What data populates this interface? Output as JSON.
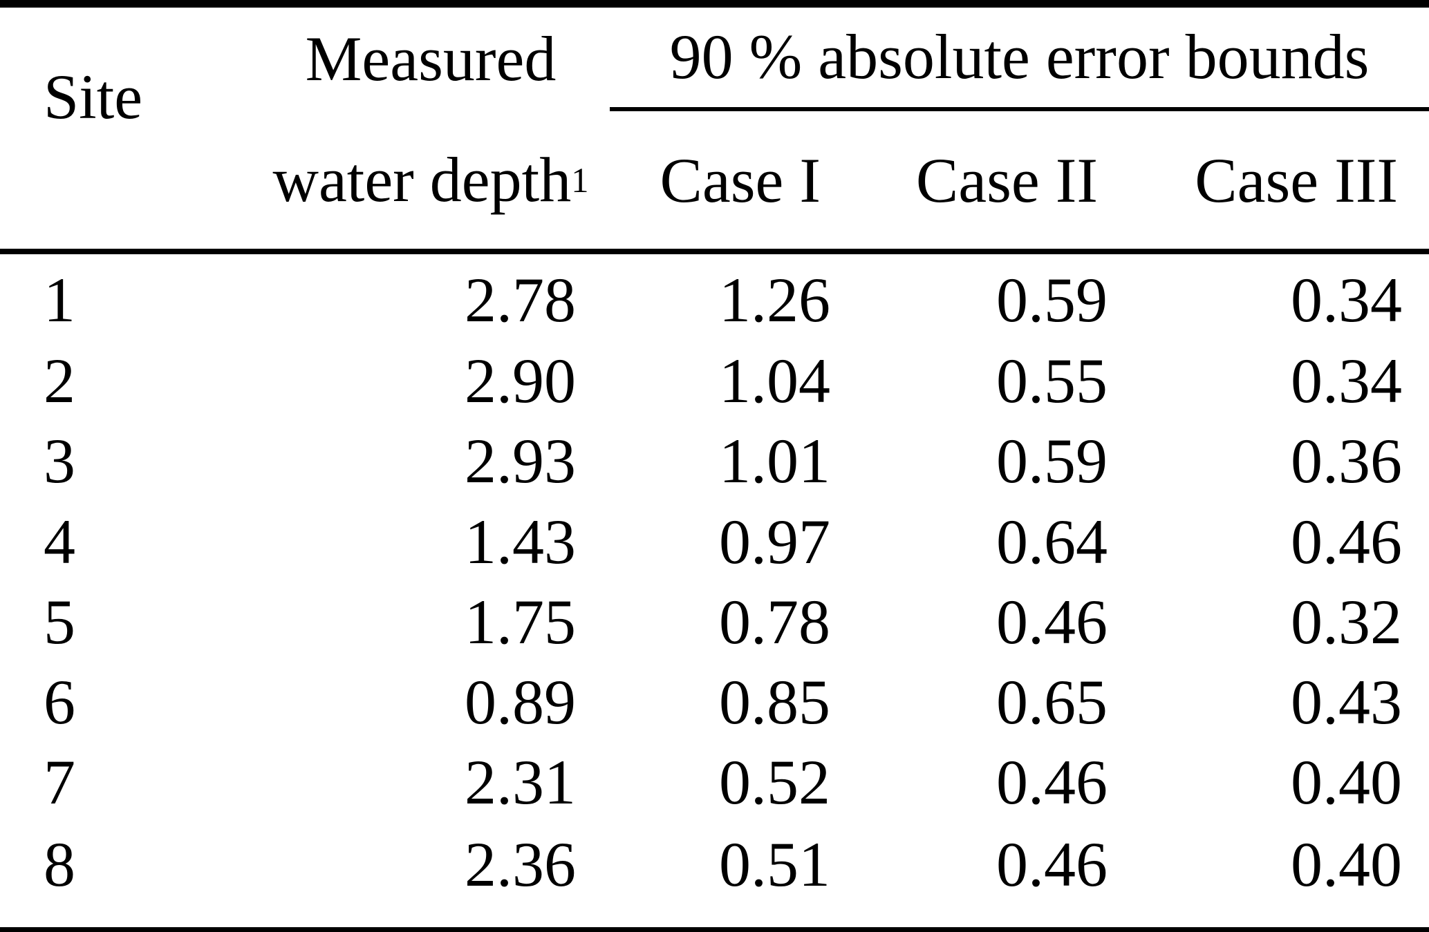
{
  "table": {
    "columns": {
      "site": "Site",
      "col2_line1": "Measured",
      "col2_line2": "water depth",
      "col2_superscript": "1",
      "span_header": "90 % absolute error bounds",
      "case1": "Case I",
      "case2": "Case II",
      "case3": "Case III"
    },
    "rows": [
      [
        "1",
        "2.78",
        "1.26",
        "0.59",
        "0.34"
      ],
      [
        "2",
        "2.90",
        "1.04",
        "0.55",
        "0.34"
      ],
      [
        "3",
        "2.93",
        "1.01",
        "0.59",
        "0.36"
      ],
      [
        "4",
        "1.43",
        "0.97",
        "0.64",
        "0.46"
      ],
      [
        "5",
        "1.75",
        "0.78",
        "0.46",
        "0.32"
      ],
      [
        "6",
        "0.89",
        "0.85",
        "0.65",
        "0.43"
      ],
      [
        "7",
        "2.31",
        "0.52",
        "0.46",
        "0.40"
      ],
      [
        "8",
        "2.36",
        "0.51",
        "0.46",
        "0.40"
      ]
    ]
  },
  "colors": {
    "text": "#000000",
    "rule": "#000000",
    "background": "#ffffff"
  }
}
